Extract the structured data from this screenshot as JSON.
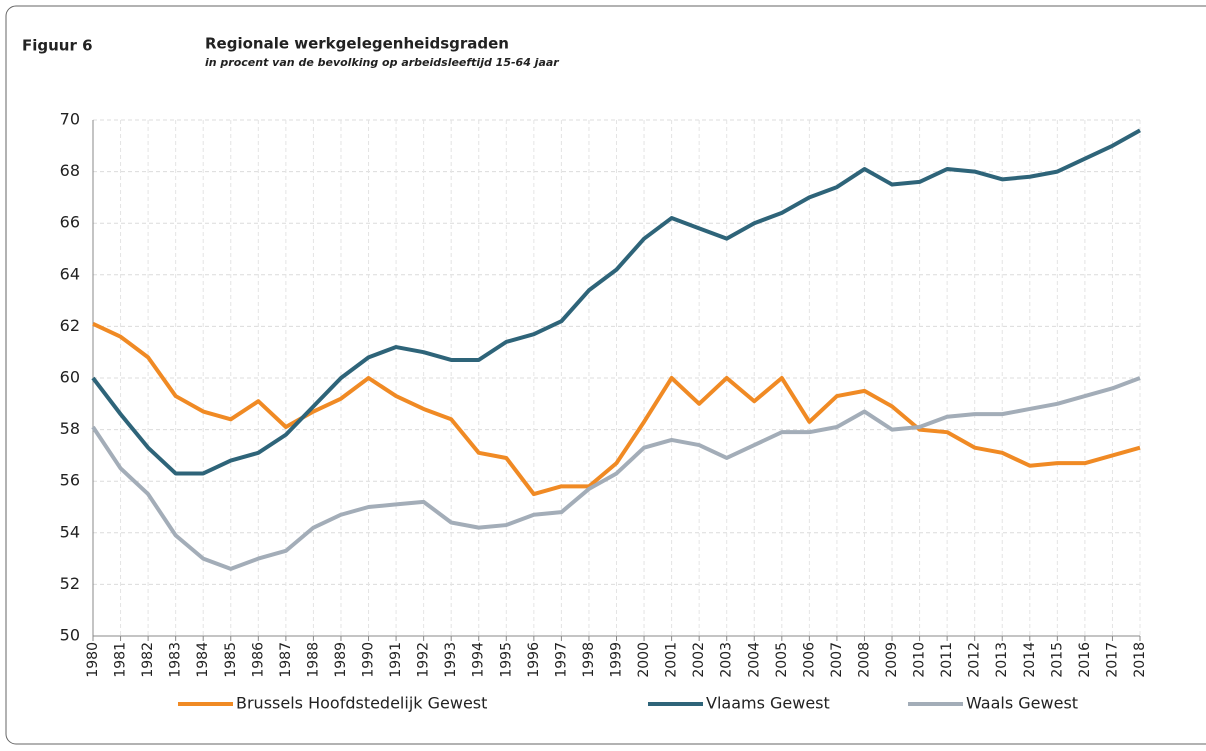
{
  "chart_data": {
    "type": "line",
    "figure_label": "Figuur 6",
    "title": "Regionale werkgelegenheidsgraden",
    "subtitle": "in procent van de bevolking op arbeidsleeftijd 15-64 jaar",
    "categories": [
      "1980",
      "1981",
      "1982",
      "1983",
      "1984",
      "1985",
      "1986",
      "1987",
      "1988",
      "1989",
      "1990",
      "1991",
      "1992",
      "1993",
      "1994",
      "1995",
      "1996",
      "1997",
      "1998",
      "1999",
      "2000",
      "2001",
      "2002",
      "2003",
      "2004",
      "2005",
      "2006",
      "2007",
      "2008",
      "2009",
      "2010",
      "2011",
      "2012",
      "2013",
      "2014",
      "2015",
      "2016",
      "2017",
      "2018"
    ],
    "series": [
      {
        "name": "Brussels Hoofdstedelijk Gewest",
        "color": "#f08a24",
        "values": [
          62.1,
          61.6,
          60.8,
          59.3,
          58.7,
          58.4,
          59.1,
          58.1,
          58.7,
          59.2,
          60.0,
          59.3,
          58.8,
          58.4,
          57.1,
          56.9,
          55.5,
          55.8,
          55.8,
          56.7,
          58.3,
          60.0,
          59.0,
          60.0,
          59.1,
          60.0,
          58.3,
          59.3,
          59.5,
          58.9,
          58.0,
          57.9,
          57.3,
          57.1,
          56.6,
          56.7,
          56.7,
          57.0,
          57.3
        ]
      },
      {
        "name": "Vlaams Gewest",
        "color": "#2e6479",
        "values": [
          60.0,
          58.6,
          57.3,
          56.3,
          56.3,
          56.8,
          57.1,
          57.8,
          58.9,
          60.0,
          60.8,
          61.2,
          61.0,
          60.7,
          60.7,
          61.4,
          61.7,
          62.2,
          63.4,
          64.2,
          65.4,
          66.2,
          65.8,
          65.4,
          66.0,
          66.4,
          67.0,
          67.4,
          68.1,
          67.5,
          67.6,
          68.1,
          68.0,
          67.7,
          67.8,
          68.0,
          68.5,
          69.0,
          69.6
        ]
      },
      {
        "name": "Waals Gewest",
        "color": "#a3adb8",
        "values": [
          58.1,
          56.5,
          55.5,
          53.9,
          53.0,
          52.6,
          53.0,
          53.3,
          54.2,
          54.7,
          55.0,
          55.1,
          55.2,
          54.4,
          54.2,
          54.3,
          54.7,
          54.8,
          55.7,
          56.3,
          57.3,
          57.6,
          57.4,
          56.9,
          57.4,
          57.9,
          57.9,
          58.1,
          58.7,
          58.0,
          58.1,
          58.5,
          58.6,
          58.6,
          58.8,
          59.0,
          59.3,
          59.6,
          60.0
        ]
      }
    ],
    "ylim": [
      50,
      70
    ],
    "yticks": [
      50,
      52,
      54,
      56,
      58,
      60,
      62,
      64,
      66,
      68,
      70
    ],
    "grid": true
  }
}
